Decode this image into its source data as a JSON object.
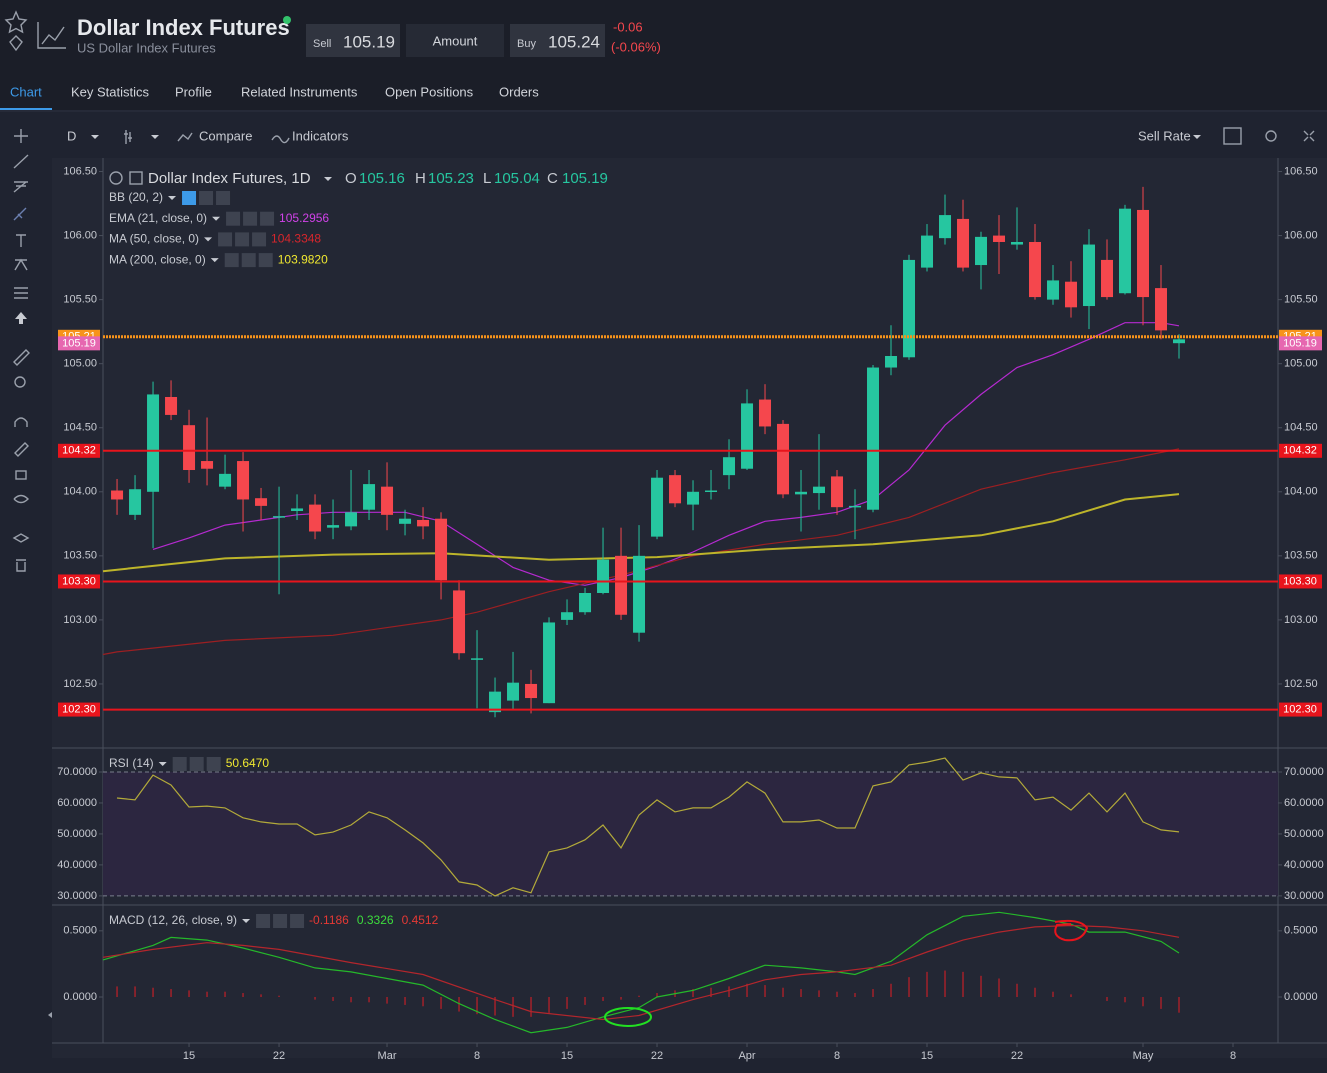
{
  "header": {
    "title": "Dollar Index Futures",
    "subtitle": "US Dollar Index Futures",
    "sell_label": "Sell",
    "sell_price": "105.19",
    "amount_label": "Amount",
    "buy_label": "Buy",
    "buy_price": "105.24",
    "change": "-0.06",
    "change_percent": "(-0.06%)"
  },
  "tabs": [
    "Chart",
    "Key Statistics",
    "Profile",
    "Related Instruments",
    "Open Positions",
    "Orders"
  ],
  "toolbar": {
    "interval": "D",
    "compare": "Compare",
    "indicators": "Indicators",
    "rate": "Sell Rate"
  },
  "chart_data": [
    {
      "type": "candlestick",
      "title": "Dollar Index Futures, 1D",
      "ohlc_labels": [
        "O",
        "H",
        "L",
        "C"
      ],
      "up_color": "#26c6a0",
      "down_color": "#f5474d",
      "x": [
        0,
        1,
        2,
        3,
        4,
        5,
        6,
        7,
        8,
        9,
        10,
        11,
        12,
        13,
        14,
        15,
        16,
        17,
        18,
        19,
        20,
        21,
        22,
        23,
        24,
        25,
        26,
        27,
        28,
        29,
        30,
        31,
        32,
        33,
        34,
        35,
        36,
        37,
        38,
        39,
        40,
        41,
        42,
        43,
        44,
        45,
        46,
        47,
        48,
        49,
        50,
        51,
        52,
        53,
        54,
        55,
        56,
        57,
        58,
        59
      ],
      "open": [
        104.01,
        103.82,
        104.0,
        104.74,
        104.52,
        104.24,
        104.04,
        104.24,
        103.95,
        103.8,
        103.85,
        103.9,
        103.72,
        103.73,
        103.86,
        104.04,
        103.75,
        103.78,
        103.79,
        103.23,
        102.69,
        102.28,
        102.37,
        102.5,
        102.35,
        103.0,
        103.06,
        103.21,
        103.5,
        102.9,
        103.65,
        104.13,
        103.9,
        104.0,
        104.13,
        104.18,
        104.72,
        104.53,
        103.98,
        103.99,
        104.12,
        103.88,
        103.86,
        104.97,
        105.05,
        105.75,
        105.98,
        106.13,
        105.77,
        106.0,
        105.93,
        105.95,
        105.5,
        105.64,
        105.45,
        105.81,
        105.55,
        106.2,
        105.59,
        105.16
      ],
      "high": [
        104.1,
        104.13,
        104.86,
        104.87,
        104.64,
        104.58,
        104.29,
        104.31,
        104.03,
        104.04,
        103.98,
        103.98,
        103.94,
        104.17,
        104.17,
        104.23,
        103.86,
        103.88,
        103.84,
        103.31,
        102.92,
        102.55,
        102.75,
        102.61,
        103.02,
        103.16,
        103.25,
        103.72,
        103.72,
        103.74,
        104.17,
        104.17,
        104.09,
        104.17,
        104.41,
        104.8,
        104.84,
        104.56,
        104.17,
        104.45,
        104.17,
        104.02,
        104.99,
        105.3,
        105.85,
        106.09,
        106.32,
        106.28,
        106.03,
        106.16,
        106.22,
        106.09,
        105.77,
        105.8,
        106.05,
        105.97,
        106.24,
        106.38,
        105.77,
        105.23
      ],
      "low": [
        103.82,
        103.78,
        103.56,
        104.56,
        104.07,
        104.05,
        104.02,
        103.69,
        103.78,
        103.2,
        103.78,
        103.63,
        103.63,
        103.7,
        103.78,
        103.7,
        103.66,
        103.63,
        103.16,
        102.69,
        102.31,
        102.24,
        102.3,
        102.27,
        102.35,
        102.96,
        103.04,
        103.2,
        103.0,
        102.83,
        103.63,
        103.88,
        103.7,
        103.94,
        104.02,
        104.17,
        104.45,
        103.95,
        103.69,
        103.86,
        103.82,
        103.63,
        103.84,
        104.91,
        105.03,
        105.72,
        105.93,
        105.72,
        105.58,
        105.7,
        105.89,
        105.5,
        105.46,
        105.36,
        105.27,
        105.5,
        105.54,
        105.3,
        105.19,
        105.04
      ],
      "close": [
        103.94,
        104.02,
        104.76,
        104.6,
        104.17,
        104.18,
        104.14,
        103.94,
        103.89,
        103.81,
        103.87,
        103.69,
        103.74,
        103.84,
        104.06,
        103.82,
        103.79,
        103.73,
        103.31,
        102.74,
        102.7,
        102.44,
        102.51,
        102.39,
        102.98,
        103.06,
        103.21,
        103.47,
        103.04,
        103.5,
        104.11,
        103.91,
        104.0,
        104.01,
        104.27,
        104.69,
        104.51,
        103.98,
        104.0,
        104.04,
        103.88,
        103.89,
        104.97,
        105.06,
        105.81,
        106.0,
        106.16,
        105.75,
        105.99,
        105.95,
        105.95,
        105.52,
        105.65,
        105.44,
        105.93,
        105.52,
        106.21,
        105.52,
        105.26,
        105.19
      ],
      "series": [
        {
          "name": "BB (20, 2)",
          "active": true
        },
        {
          "name": "EMA (21, close, 0)",
          "color": "#b52ad0",
          "label_color": "#d042e8",
          "last_label": "105.2956",
          "x": [
            2,
            4,
            6,
            8,
            10,
            12,
            14,
            16,
            18,
            20,
            22,
            24,
            26,
            28,
            30,
            32,
            34,
            36,
            38,
            40,
            42,
            44,
            46,
            48,
            50,
            52,
            54,
            56,
            58,
            59
          ],
          "values": [
            103.55,
            103.64,
            103.74,
            103.78,
            103.82,
            103.84,
            103.84,
            103.84,
            103.77,
            103.59,
            103.41,
            103.31,
            103.27,
            103.33,
            103.42,
            103.53,
            103.66,
            103.77,
            103.8,
            103.84,
            103.94,
            104.17,
            104.52,
            104.76,
            104.97,
            105.07,
            105.19,
            105.32,
            105.32,
            105.2956
          ]
        },
        {
          "name": "MA (50, close, 0)",
          "color": "#9c1f22",
          "label_color": "#d8262c",
          "last_label": "104.3348",
          "x": [
            -0.78,
            0,
            6,
            12,
            18,
            20,
            24,
            28,
            32,
            36,
            40,
            44,
            48,
            52,
            56,
            59
          ],
          "values": [
            102.73,
            102.75,
            102.84,
            102.88,
            103.0,
            103.06,
            103.22,
            103.35,
            103.5,
            103.59,
            103.66,
            103.8,
            104.02,
            104.15,
            104.25,
            104.3348
          ]
        },
        {
          "name": "MA (200, close, 0)",
          "color": "#bdb52a",
          "label_color": "#f0e830",
          "last_label": "103.9820",
          "x": [
            -0.78,
            6,
            12,
            18,
            24,
            30,
            36,
            42,
            48,
            52,
            56,
            59
          ],
          "values": [
            103.38,
            103.48,
            103.51,
            103.52,
            103.47,
            103.49,
            103.55,
            103.59,
            103.66,
            103.77,
            103.94,
            103.982
          ]
        }
      ],
      "levels": [
        {
          "value": 105.21,
          "color": "#f7931a",
          "width": 3,
          "dashed": true
        },
        {
          "value": 105.19,
          "color": "#e667b0",
          "line": false
        },
        {
          "value": 104.32,
          "color": "#e8141c",
          "width": 2
        },
        {
          "value": 103.3,
          "label": "103.30",
          "color": "#e8141c",
          "width": 2
        },
        {
          "value": 102.3,
          "label": "102.30",
          "color": "#e8141c",
          "width": 2
        }
      ],
      "xlim": [
        -0.78,
        64.5
      ],
      "ylim": [
        102.0,
        106.59
      ],
      "yticks": [
        {
          "value": 102.5,
          "label": "102.50"
        },
        {
          "value": 103,
          "label": "103.00"
        },
        {
          "value": 103.5,
          "label": "103.50"
        },
        {
          "value": 104,
          "label": "104.00"
        },
        {
          "value": 104.5,
          "label": "104.50"
        },
        {
          "value": 105,
          "label": "105.00"
        },
        {
          "value": 105.5,
          "label": "105.50"
        },
        {
          "value": 106,
          "label": "106.00"
        },
        {
          "value": 106.5,
          "label": "106.50"
        }
      ],
      "grid": false
    },
    {
      "type": "line",
      "title": "RSI (14)",
      "band": {
        "from": 30,
        "to": 70,
        "color": "#2c2640"
      },
      "series": [
        {
          "color": "#b3aa3a",
          "label_color": "#f0e830",
          "last_label": "50.6470",
          "x": [
            0,
            1,
            2,
            3,
            4,
            5,
            6,
            7,
            8,
            9,
            10,
            11,
            12,
            13,
            14,
            15,
            16,
            17,
            18,
            19,
            20,
            21,
            22,
            23,
            24,
            25,
            26,
            27,
            28,
            29,
            30,
            31,
            32,
            33,
            34,
            35,
            36,
            37,
            38,
            39,
            40,
            41,
            42,
            43,
            44,
            45,
            46,
            47,
            48,
            49,
            50,
            51,
            52,
            53,
            54,
            55,
            56,
            57,
            58,
            59
          ],
          "values": [
            61.6,
            61.0,
            69.0,
            65.8,
            58.7,
            59.0,
            58.4,
            55.2,
            53.9,
            53.2,
            53.2,
            49.7,
            50.6,
            52.9,
            57.1,
            55.2,
            51.3,
            47.1,
            41.6,
            34.5,
            33.5,
            30.0,
            32.6,
            31.0,
            44.2,
            45.5,
            48.1,
            52.9,
            45.5,
            56.1,
            61.0,
            57.1,
            58.4,
            58.4,
            61.9,
            66.8,
            63.2,
            53.9,
            53.9,
            54.5,
            51.9,
            51.9,
            65.5,
            66.8,
            72.3,
            73.2,
            74.5,
            67.4,
            69.7,
            68.4,
            68.1,
            61.0,
            61.9,
            57.7,
            63.2,
            57.1,
            63.2,
            53.9,
            51.3,
            50.647
          ]
        }
      ],
      "xlim": [
        -0.78,
        64.5
      ],
      "ylim": [
        27.7,
        77.1
      ],
      "yticks": [
        {
          "value": 30,
          "label": "30.0000"
        },
        {
          "value": 40,
          "label": "40.0000"
        },
        {
          "value": 50,
          "label": "50.0000"
        },
        {
          "value": 60,
          "label": "60.0000"
        },
        {
          "value": 70,
          "label": "70.0000"
        }
      ],
      "grid": false
    },
    {
      "type": "line",
      "title": "MACD (12, 26, close, 9)",
      "series": [
        {
          "style": "bar",
          "color": "#a3212a",
          "label_color": "#e53935",
          "last_label": "-0.1186",
          "x": [
            0,
            1,
            2,
            3,
            4,
            5,
            6,
            7,
            8,
            9,
            10,
            11,
            12,
            13,
            14,
            15,
            16,
            17,
            18,
            19,
            20,
            21,
            22,
            23,
            24,
            25,
            26,
            27,
            28,
            29,
            30,
            31,
            32,
            33,
            34,
            35,
            36,
            37,
            38,
            39,
            40,
            41,
            42,
            43,
            44,
            45,
            46,
            47,
            48,
            49,
            50,
            51,
            52,
            53,
            54,
            55,
            56,
            57,
            58,
            59
          ],
          "values": [
            0.08,
            0.08,
            0.07,
            0.06,
            0.05,
            0.04,
            0.04,
            0.03,
            0.02,
            0.01,
            0.0,
            -0.02,
            -0.03,
            -0.04,
            -0.04,
            -0.05,
            -0.06,
            -0.07,
            -0.09,
            -0.11,
            -0.13,
            -0.14,
            -0.15,
            -0.15,
            -0.12,
            -0.09,
            -0.06,
            -0.03,
            -0.02,
            0.01,
            0.03,
            0.05,
            0.06,
            0.07,
            0.08,
            0.1,
            0.09,
            0.07,
            0.06,
            0.05,
            0.04,
            0.03,
            0.06,
            0.1,
            0.15,
            0.19,
            0.2,
            0.19,
            0.16,
            0.14,
            0.1,
            0.07,
            0.04,
            0.02,
            0.0,
            -0.03,
            -0.04,
            -0.07,
            -0.09,
            -0.1186
          ]
        },
        {
          "color": "#25b82a",
          "label_color": "#3ddc3d",
          "last_label": "0.3326",
          "x": [
            -0.78,
            2,
            3,
            5,
            7,
            9,
            11,
            13,
            15,
            17,
            19,
            21,
            23,
            25,
            27,
            29,
            30,
            32,
            34,
            36,
            38,
            40,
            41,
            43,
            45,
            47,
            49,
            51,
            53,
            54,
            56,
            58,
            59
          ],
          "values": [
            0.28,
            0.39,
            0.45,
            0.43,
            0.37,
            0.3,
            0.22,
            0.19,
            0.14,
            0.09,
            -0.05,
            -0.17,
            -0.27,
            -0.23,
            -0.15,
            -0.08,
            0.0,
            0.05,
            0.14,
            0.24,
            0.22,
            0.19,
            0.17,
            0.27,
            0.47,
            0.61,
            0.64,
            0.6,
            0.55,
            0.49,
            0.49,
            0.42,
            0.3326
          ]
        },
        {
          "color": "#b3262c",
          "label_color": "#e53935",
          "last_label": "0.4512",
          "x": [
            -0.78,
            2,
            5,
            7,
            9,
            13,
            17,
            21,
            23,
            27,
            29,
            32,
            34,
            36,
            38,
            40,
            43,
            45,
            47,
            49,
            51,
            53,
            55,
            57,
            59
          ],
          "values": [
            0.3,
            0.36,
            0.41,
            0.39,
            0.36,
            0.26,
            0.17,
            -0.02,
            -0.11,
            -0.17,
            -0.14,
            -0.02,
            0.05,
            0.13,
            0.17,
            0.19,
            0.24,
            0.34,
            0.43,
            0.49,
            0.53,
            0.54,
            0.53,
            0.5,
            0.4512
          ]
        }
      ],
      "xlim": [
        -0.78,
        64.5
      ],
      "ylim": [
        -0.34,
        0.68
      ],
      "yticks": [
        {
          "value": 0,
          "label": "0.0000"
        },
        {
          "value": 0.5,
          "label": "0.5000"
        }
      ],
      "xticks": [
        {
          "value": 4,
          "label": "15"
        },
        {
          "value": 9,
          "label": "22"
        },
        {
          "value": 15,
          "label": "Mar"
        },
        {
          "value": 20,
          "label": "8"
        },
        {
          "value": 25,
          "label": "15"
        },
        {
          "value": 30,
          "label": "22"
        },
        {
          "value": 35,
          "label": "Apr"
        },
        {
          "value": 40,
          "label": "8"
        },
        {
          "value": 45,
          "label": "15"
        },
        {
          "value": 50,
          "label": "22"
        },
        {
          "value": 57,
          "label": "May"
        },
        {
          "value": 62,
          "label": "8"
        }
      ],
      "grid": false
    }
  ]
}
